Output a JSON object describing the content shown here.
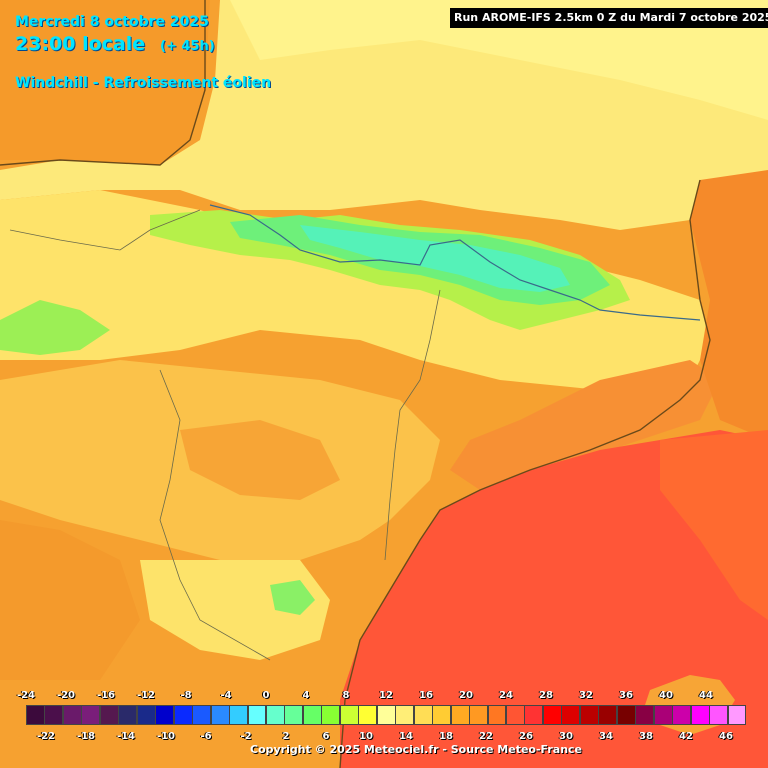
{
  "header": {
    "date_line": "Mercredi 8 octobre 2025",
    "time_line": "23:00 locale",
    "lead_line": "(+ 45h)",
    "param_line": "Windchill - Refroissement éolien",
    "run_line": "Run AROME-IFS 2.5km 0 Z du Mardi 7 octobre 2025"
  },
  "legend": {
    "top_ticks": [
      "-24",
      "-20",
      "-16",
      "-12",
      "-8",
      "-4",
      "0",
      "4",
      "8",
      "12",
      "16",
      "20",
      "24",
      "28",
      "32",
      "36",
      "40",
      "44"
    ],
    "bottom_ticks": [
      "-22",
      "-18",
      "-14",
      "-10",
      "-6",
      "-2",
      "2",
      "6",
      "10",
      "14",
      "18",
      "22",
      "26",
      "30",
      "34",
      "38",
      "42",
      "46"
    ],
    "colors": [
      "#3c0a3c",
      "#4b0f4b",
      "#6a1a6a",
      "#7a1e7a",
      "#55184f",
      "#2a2a6a",
      "#1a2a8a",
      "#0000cc",
      "#0a2aff",
      "#1a5aff",
      "#2a8aff",
      "#33ccff",
      "#66ffff",
      "#66ffcc",
      "#66ff99",
      "#66ff66",
      "#88ff33",
      "#ccff33",
      "#ffff33",
      "#ffff99",
      "#ffee77",
      "#ffdd55",
      "#ffcc33",
      "#ffaa22",
      "#ff9922",
      "#ff7722",
      "#ff5533",
      "#ff3333",
      "#ff0000",
      "#dd0000",
      "#bb0000",
      "#990000",
      "#770000",
      "#880044",
      "#aa0077",
      "#cc00aa",
      "#ff00ff",
      "#ff55ff",
      "#ff99ff"
    ]
  },
  "copyright": "Copyright © 2025 Meteociel.fr - Source Meteo-France"
}
